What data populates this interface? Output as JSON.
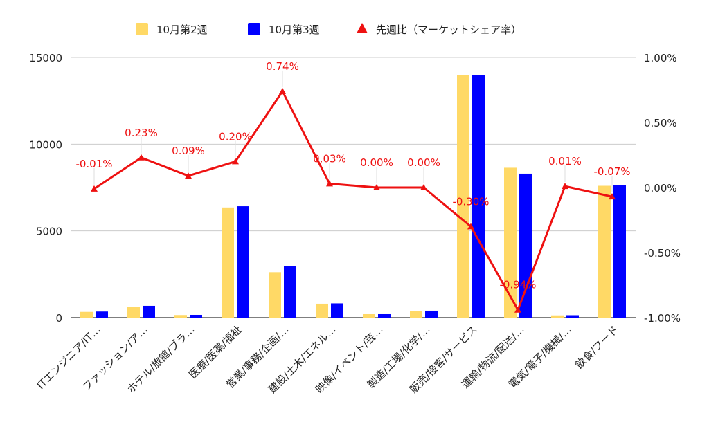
{
  "chart_data": {
    "type": "bar",
    "categories": [
      "ITエンジニア/IT…",
      "ファッション/ア…",
      "ホテル/旅館/ブラ…",
      "医療/医薬/福祉",
      "営業/事務/企画/…",
      "建設/土木/エネル…",
      "映像/イベント/芸…",
      "製造/工場/化学/…",
      "販売/接客/サービス",
      "運輸/物流/配送/…",
      "電気/電子/機械/…",
      "飲食/フード"
    ],
    "series": [
      {
        "name": "10月第2週",
        "type": "bar",
        "axis": "left",
        "color": "#ffd966",
        "values": [
          330,
          620,
          150,
          6350,
          2620,
          800,
          200,
          390,
          13980,
          8640,
          130,
          7600
        ]
      },
      {
        "name": "10月第3週",
        "type": "bar",
        "axis": "left",
        "color": "#0000ff",
        "values": [
          350,
          680,
          160,
          6420,
          2980,
          820,
          200,
          400,
          13980,
          8300,
          140,
          7620
        ]
      },
      {
        "name": "先週比（マーケットシェア率）",
        "type": "line",
        "axis": "right",
        "color": "#ee1111",
        "values": [
          -0.01,
          0.23,
          0.09,
          0.2,
          0.74,
          0.03,
          0.0,
          0.0,
          -0.3,
          -0.94,
          0.01,
          -0.07
        ],
        "labels": [
          "-0.01%",
          "0.23%",
          "0.09%",
          "0.20%",
          "0.74%",
          "0.03%",
          "0.00%",
          "0.00%",
          "-0.30%",
          "-0.94%",
          "0.01%",
          "-0.07%"
        ]
      }
    ],
    "left_axis": {
      "ylim": [
        0,
        15000
      ],
      "ticks": [
        "0",
        "5000",
        "10000",
        "15000"
      ]
    },
    "right_axis": {
      "ylim": [
        -1.0,
        1.0
      ],
      "ticks": [
        "-1.00%",
        "-0.50%",
        "0.00%",
        "0.50%",
        "1.00%"
      ]
    },
    "grid": true,
    "legend_position": "top-center"
  }
}
